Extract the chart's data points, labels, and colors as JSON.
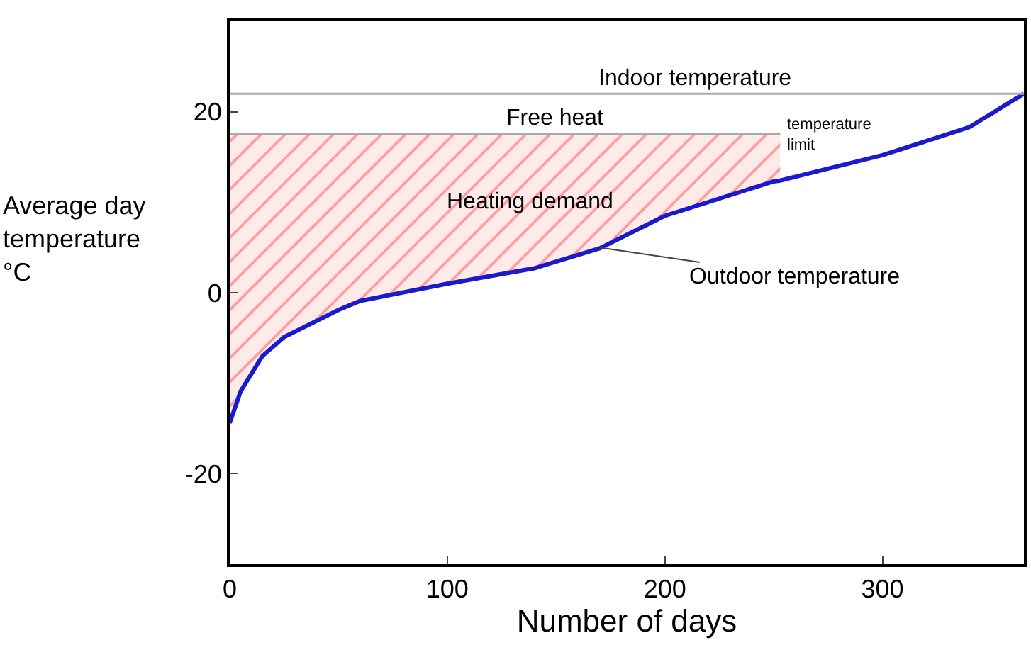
{
  "chart_data": {
    "type": "line",
    "xlabel": "Number of days",
    "ylabel": "Average day\ntemperature\n°C",
    "xlim": [
      0,
      365
    ],
    "xticks": [
      0,
      100,
      200,
      300
    ],
    "ylim": [
      -30,
      30
    ],
    "yticks": [
      -20,
      0,
      20
    ],
    "grid": false,
    "marker": "none",
    "line_style": "solid",
    "series": [
      {
        "color": "#1a1acc",
        "x": [
          0,
          5,
          15,
          25,
          50,
          60,
          100,
          140,
          170,
          200,
          250,
          253,
          300,
          340,
          365
        ],
        "values": [
          -14.4,
          -10.9,
          -7,
          -4.9,
          -1.9,
          -0.9,
          1,
          2.7,
          4.9,
          8.5,
          12.3,
          12.4,
          15.2,
          18.3,
          22
        ],
        "lower": [
          -14.4,
          -10.9,
          -7,
          -4.9,
          -1.9,
          -0.9,
          1,
          2.7,
          4.9,
          8.5,
          12.3,
          12.4,
          null,
          null,
          null
        ],
        "upper": [
          17.5,
          17.5,
          17.5,
          17.5,
          17.5,
          17.5,
          17.5,
          17.5,
          17.5,
          17.5,
          17.5,
          17.5,
          null,
          null,
          null
        ]
      }
    ],
    "ref_lines": [
      {
        "axis": "y",
        "value": 22,
        "label": "Indoor temperature",
        "color": "#aaaaaa"
      }
    ],
    "annotations": [
      "Free heat",
      "Heating demand",
      {
        "text": "temperature\nlimit",
        "x": 255,
        "y": 17.5
      },
      {
        "text": "Outdoor temperature",
        "x": 170,
        "y": 5
      }
    ]
  }
}
